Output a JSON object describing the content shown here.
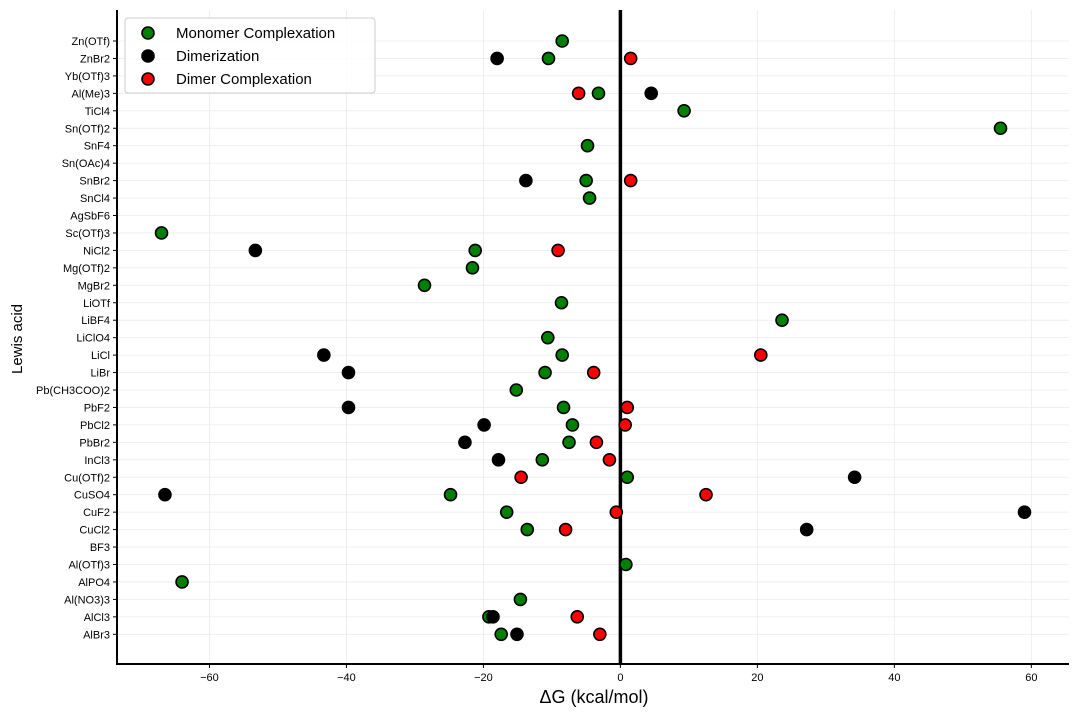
{
  "chart_data": {
    "type": "scatter",
    "xlabel": "ΔG (kcal/mol)",
    "ylabel": "Lewis acid",
    "xlim": [
      -73.5,
      65.5
    ],
    "xticks": [
      -60,
      -40,
      -20,
      0,
      20,
      40,
      60
    ],
    "xtick_labels": [
      "−60",
      "−40",
      "−20",
      "0",
      "20",
      "40",
      "60"
    ],
    "grid": true,
    "legend_placement": "top-left",
    "vertical_reference_line_x": 0,
    "categories": [
      "Zn(OTf)",
      "ZnBr2",
      "Yb(OTf)3",
      "Al(Me)3",
      "TiCl4",
      "Sn(OTf)2",
      "SnF4",
      "Sn(OAc)4",
      "SnBr2",
      "SnCl4",
      "AgSbF6",
      "Sc(OTf)3",
      "NiCl2",
      "Mg(OTf)2",
      "MgBr2",
      "LiOTf",
      "LiBF4",
      "LiClO4",
      "LiCl",
      "LiBr",
      "Pb(CH3COO)2",
      "PbF2",
      "PbCl2",
      "PbBr2",
      "InCl3",
      "Cu(OTf)2",
      "CuSO4",
      "CuF2",
      "CuCl2",
      "BF3",
      "Al(OTf)3",
      "AlPO4",
      "Al(NO3)3",
      "AlCl3",
      "AlBr3"
    ],
    "series": [
      {
        "name": "Monomer Complexation",
        "color": "#008000",
        "points": [
          {
            "y": "Zn(OTf)",
            "x": -8.5
          },
          {
            "y": "ZnBr2",
            "x": -10.5
          },
          {
            "y": "Al(Me)3",
            "x": -3.2
          },
          {
            "y": "TiCl4",
            "x": 9.3
          },
          {
            "y": "Sn(OTf)2",
            "x": 55.5
          },
          {
            "y": "SnF4",
            "x": -4.8
          },
          {
            "y": "SnBr2",
            "x": -5.0
          },
          {
            "y": "SnCl4",
            "x": -4.5
          },
          {
            "y": "Sc(OTf)3",
            "x": -67.0
          },
          {
            "y": "NiCl2",
            "x": -21.2
          },
          {
            "y": "Mg(OTf)2",
            "x": -21.6
          },
          {
            "y": "MgBr2",
            "x": -28.6
          },
          {
            "y": "LiOTf",
            "x": -8.6
          },
          {
            "y": "LiBF4",
            "x": 23.6
          },
          {
            "y": "LiClO4",
            "x": -10.6
          },
          {
            "y": "LiCl",
            "x": -8.5
          },
          {
            "y": "LiBr",
            "x": -11.0
          },
          {
            "y": "Pb(CH3COO)2",
            "x": -15.2
          },
          {
            "y": "PbF2",
            "x": -8.3
          },
          {
            "y": "PbCl2",
            "x": -7.0
          },
          {
            "y": "PbBr2",
            "x": -7.5
          },
          {
            "y": "InCl3",
            "x": -11.4
          },
          {
            "y": "Cu(OTf)2",
            "x": 1.0
          },
          {
            "y": "CuSO4",
            "x": -24.8
          },
          {
            "y": "CuF2",
            "x": -16.6
          },
          {
            "y": "CuCl2",
            "x": -13.6
          },
          {
            "y": "Al(OTf)3",
            "x": 0.8
          },
          {
            "y": "AlPO4",
            "x": -64.0
          },
          {
            "y": "Al(NO3)3",
            "x": -14.6
          },
          {
            "y": "AlCl3",
            "x": -19.2
          },
          {
            "y": "AlBr3",
            "x": -17.4
          }
        ]
      },
      {
        "name": "Dimerization",
        "color": "#000000",
        "points": [
          {
            "y": "ZnBr2",
            "x": -18.0
          },
          {
            "y": "Al(Me)3",
            "x": 4.5
          },
          {
            "y": "SnBr2",
            "x": -13.8
          },
          {
            "y": "NiCl2",
            "x": -53.3
          },
          {
            "y": "LiCl",
            "x": -43.3
          },
          {
            "y": "LiBr",
            "x": -39.7
          },
          {
            "y": "PbF2",
            "x": -39.7
          },
          {
            "y": "PbCl2",
            "x": -19.9
          },
          {
            "y": "PbBr2",
            "x": -22.7
          },
          {
            "y": "InCl3",
            "x": -17.8
          },
          {
            "y": "Cu(OTf)2",
            "x": 34.2
          },
          {
            "y": "CuSO4",
            "x": -66.5
          },
          {
            "y": "CuF2",
            "x": 59.0
          },
          {
            "y": "CuCl2",
            "x": 27.2
          },
          {
            "y": "AlCl3",
            "x": -18.6
          },
          {
            "y": "AlBr3",
            "x": -15.1
          }
        ]
      },
      {
        "name": "Dimer Complexation",
        "color": "#ff0000",
        "points": [
          {
            "y": "ZnBr2",
            "x": 1.5
          },
          {
            "y": "Al(Me)3",
            "x": -6.1
          },
          {
            "y": "SnBr2",
            "x": 1.5
          },
          {
            "y": "NiCl2",
            "x": -9.1
          },
          {
            "y": "LiCl",
            "x": 20.5
          },
          {
            "y": "LiBr",
            "x": -3.9
          },
          {
            "y": "PbF2",
            "x": 1.0
          },
          {
            "y": "PbCl2",
            "x": 0.7
          },
          {
            "y": "PbBr2",
            "x": -3.5
          },
          {
            "y": "InCl3",
            "x": -1.6
          },
          {
            "y": "Cu(OTf)2",
            "x": -14.5
          },
          {
            "y": "CuSO4",
            "x": 12.5
          },
          {
            "y": "CuF2",
            "x": -0.6
          },
          {
            "y": "CuCl2",
            "x": -8.0
          },
          {
            "y": "AlCl3",
            "x": -6.3
          },
          {
            "y": "AlBr3",
            "x": -3.0
          }
        ]
      }
    ]
  }
}
